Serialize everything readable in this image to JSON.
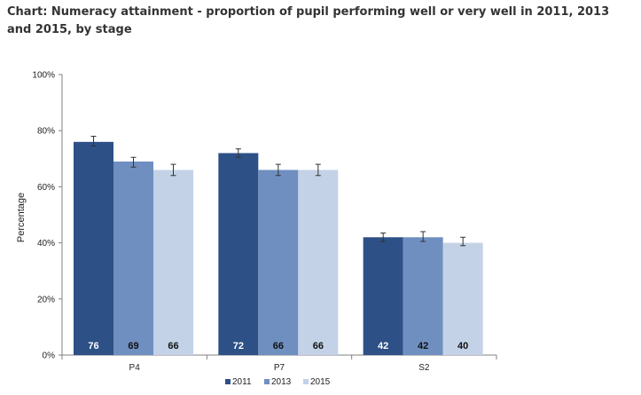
{
  "chart_data": {
    "type": "bar",
    "title": "Chart: Numeracy attainment - proportion of pupil performing well or very well in 2011, 2013 and 2015, by stage",
    "xlabel": "",
    "ylabel": "Percentage",
    "categories": [
      "P4",
      "P7",
      "S2"
    ],
    "series": [
      {
        "name": "2011",
        "values": [
          76,
          72,
          42
        ],
        "err_low": [
          74.5,
          70.5,
          40.5
        ],
        "err_high": [
          78,
          73.5,
          43.5
        ],
        "color": "#2d5086"
      },
      {
        "name": "2013",
        "values": [
          69,
          66,
          42
        ],
        "err_low": [
          67,
          64,
          40.5
        ],
        "err_high": [
          70.5,
          68,
          44
        ],
        "color": "#6f8fc0"
      },
      {
        "name": "2015",
        "values": [
          66,
          66,
          40
        ],
        "err_low": [
          64,
          64,
          39
        ],
        "err_high": [
          68,
          68,
          42
        ],
        "color": "#c3d2e6"
      }
    ],
    "data_labels": [
      [
        "76",
        "72",
        "42"
      ],
      [
        "69",
        "66",
        "42"
      ],
      [
        "66",
        "66",
        "40"
      ]
    ],
    "yticks": [
      "0%",
      "20%",
      "40%",
      "60%",
      "80%",
      "100%"
    ],
    "ylim": [
      0,
      100
    ],
    "grid": false,
    "legend_position": "bottom",
    "label_colors": {
      "2011": "#ffffff",
      "2013": "#111111",
      "2015": "#111111"
    }
  }
}
